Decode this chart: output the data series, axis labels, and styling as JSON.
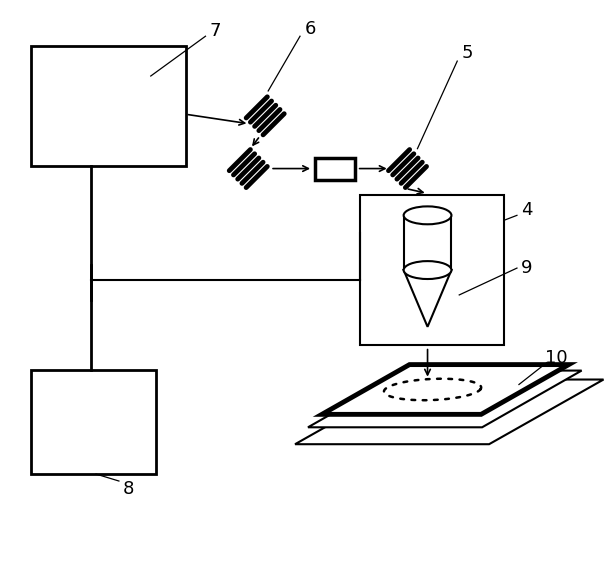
{
  "bg_color": "#ffffff",
  "line_color": "#000000",
  "fig_width": 6.09,
  "fig_height": 5.67,
  "dpi": 100,
  "font_size": 13
}
